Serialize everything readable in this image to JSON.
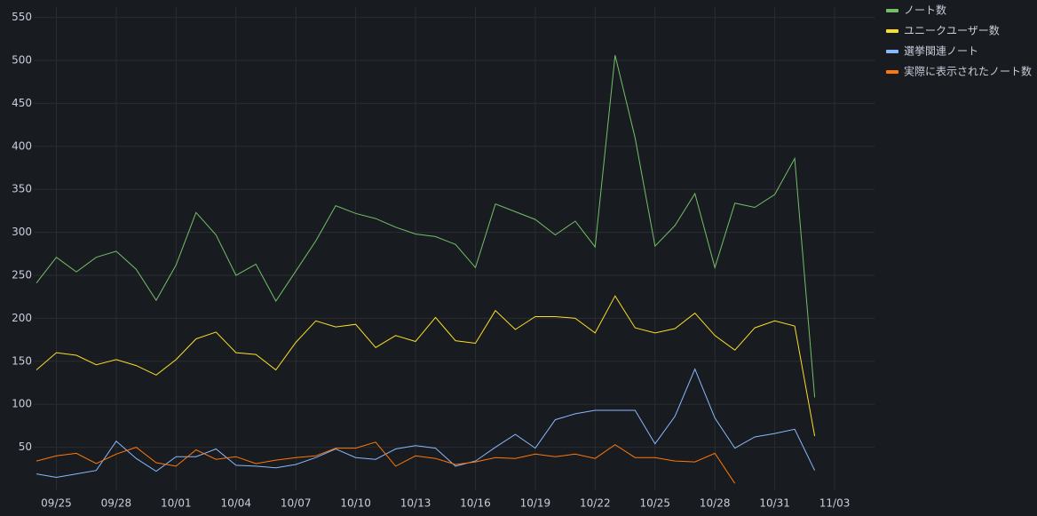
{
  "chart_data": {
    "type": "line",
    "x": [
      "09/24",
      "09/25",
      "09/26",
      "09/27",
      "09/28",
      "09/29",
      "09/30",
      "10/01",
      "10/02",
      "10/03",
      "10/04",
      "10/05",
      "10/06",
      "10/07",
      "10/08",
      "10/09",
      "10/10",
      "10/11",
      "10/12",
      "10/13",
      "10/14",
      "10/15",
      "10/16",
      "10/17",
      "10/18",
      "10/19",
      "10/20",
      "10/21",
      "10/22",
      "10/23",
      "10/24",
      "10/25",
      "10/26",
      "10/27",
      "10/28",
      "10/29",
      "10/30",
      "10/31",
      "11/01",
      "11/02"
    ],
    "xlim": [
      "09/24",
      "11/05"
    ],
    "xticks": [
      "09/25",
      "09/28",
      "10/01",
      "10/04",
      "10/07",
      "10/10",
      "10/13",
      "10/16",
      "10/19",
      "10/22",
      "10/25",
      "10/28",
      "10/31",
      "11/03"
    ],
    "ylim": [
      0,
      562
    ],
    "yticks": [
      50,
      100,
      150,
      200,
      250,
      300,
      350,
      400,
      450,
      500,
      550
    ],
    "grid": true,
    "legend": "right",
    "series": [
      {
        "name": "ノート数",
        "color": "#73bf69",
        "values": [
          241,
          271,
          254,
          271,
          278,
          257,
          221,
          262,
          323,
          297,
          250,
          263,
          220,
          255,
          290,
          331,
          322,
          316,
          306,
          298,
          295,
          286,
          259,
          333,
          324,
          315,
          297,
          313,
          283,
          506,
          410,
          284,
          308,
          345,
          259,
          334,
          329,
          344,
          386,
          108
        ]
      },
      {
        "name": "ユニークユーザー数",
        "color": "#fade2a",
        "values": [
          140,
          160,
          157,
          146,
          152,
          145,
          134,
          152,
          176,
          184,
          160,
          158,
          140,
          172,
          197,
          190,
          193,
          166,
          180,
          173,
          201,
          174,
          171,
          209,
          187,
          202,
          202,
          200,
          183,
          226,
          189,
          183,
          188,
          206,
          180,
          163,
          189,
          197,
          191,
          63
        ]
      },
      {
        "name": "選挙関連ノート",
        "color": "#8ab8ff",
        "values": [
          19,
          15,
          19,
          23,
          57,
          37,
          22,
          39,
          39,
          48,
          29,
          28,
          26,
          30,
          38,
          48,
          38,
          36,
          48,
          52,
          49,
          28,
          34,
          50,
          65,
          49,
          82,
          89,
          93,
          93,
          93,
          54,
          86,
          141,
          84,
          49,
          62,
          66,
          71,
          23
        ]
      },
      {
        "name": "実際に表示されたノート数",
        "color": "#ff780a",
        "values": [
          34,
          40,
          43,
          31,
          42,
          50,
          32,
          28,
          47,
          36,
          39,
          31,
          35,
          38,
          40,
          49,
          49,
          56,
          28,
          40,
          37,
          30,
          33,
          38,
          37,
          42,
          39,
          42,
          37,
          53,
          38,
          38,
          34,
          33,
          43,
          8,
          null,
          null,
          null,
          null
        ]
      }
    ]
  }
}
